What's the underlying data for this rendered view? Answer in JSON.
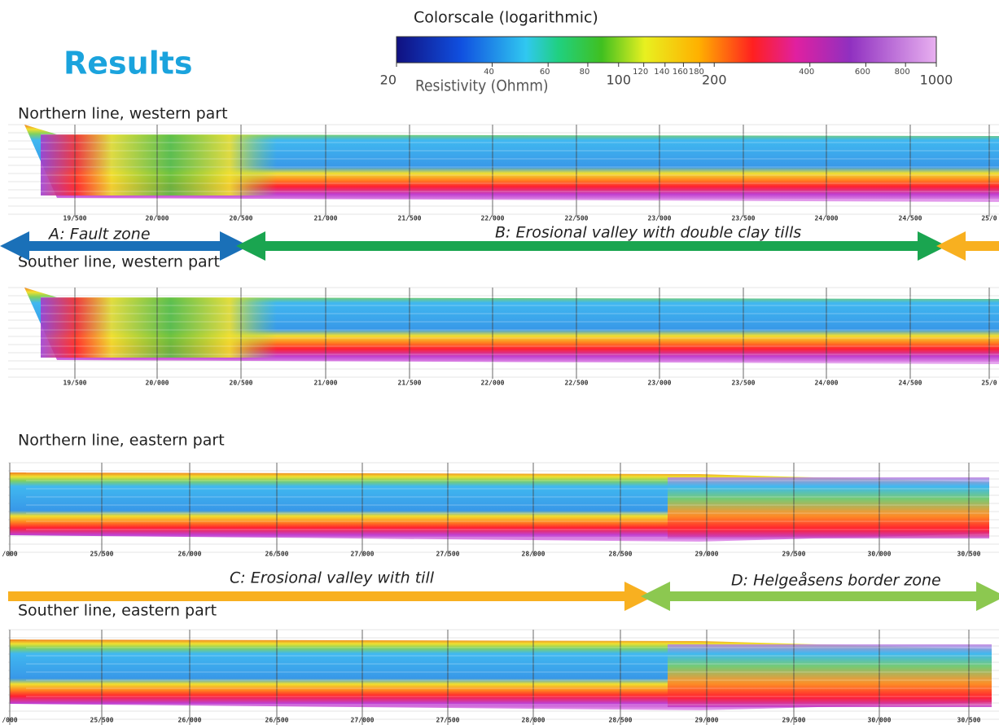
{
  "title": "Results",
  "colorscale": {
    "title": "Colorscale (logarithmic)",
    "axis_label": "Resistivity (Ohmm)",
    "lim": [
      20,
      1000
    ],
    "log": true,
    "ticks": [
      20,
      40,
      60,
      80,
      100,
      120,
      140,
      160,
      180,
      200,
      400,
      600,
      800,
      1000
    ]
  },
  "panels": [
    {
      "title": "Northern line, western part",
      "distance_labels": [
        "19/500",
        "20/000",
        "20/500",
        "21/000",
        "21/500",
        "22/000",
        "22/500",
        "23/000",
        "23/500",
        "24/000",
        "24/500",
        "25/0"
      ]
    },
    {
      "title": "Souther line, western part",
      "distance_labels": [
        "19/500",
        "20/000",
        "20/500",
        "21/000",
        "21/500",
        "22/000",
        "22/500",
        "23/000",
        "23/500",
        "24/000",
        "24/500",
        "25/0"
      ]
    },
    {
      "title": "Northern line, eastern part",
      "distance_labels": [
        "/000",
        "25/500",
        "26/000",
        "26/500",
        "27/000",
        "27/500",
        "28/000",
        "28/500",
        "29/000",
        "29/500",
        "30/000",
        "30/500"
      ]
    },
    {
      "title": "Souther line, eastern part",
      "distance_labels": [
        "/000",
        "25/500",
        "26/000",
        "26/500",
        "27/000",
        "27/500",
        "28/000",
        "28/500",
        "29/000",
        "29/500",
        "30/000",
        "30/500"
      ]
    }
  ],
  "zones": [
    {
      "label": "A: Fault zone"
    },
    {
      "label": "B: Erosional valley with double clay tills"
    },
    {
      "label": "C: Erosional valley with till"
    },
    {
      "label": "D: Helgeåsens border zone"
    }
  ]
}
